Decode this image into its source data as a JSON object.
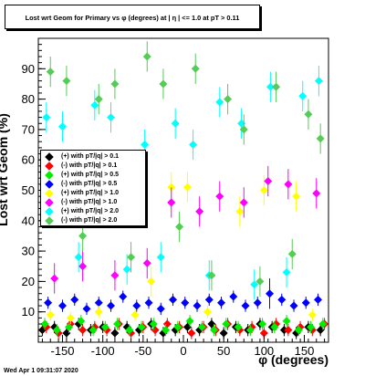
{
  "chart_data": {
    "type": "scatter",
    "title": "Lost wrt Geom for Primary vs φ (degrees) at | η | <= 1.0 at pT > 0.11",
    "xlabel": "φ (degrees)",
    "ylabel": "Lost wrt Geom (%)",
    "xlim": [
      -180,
      180
    ],
    "ylim": [
      0,
      100
    ],
    "xticks": [
      -150,
      -100,
      -50,
      0,
      50,
      100,
      150
    ],
    "yticks": [
      10,
      20,
      30,
      40,
      50,
      60,
      70,
      80,
      90
    ],
    "grid": false,
    "legend_position": "left",
    "series": [
      {
        "name": "(+) with pT/|q| > 0.1",
        "marker": "diamond",
        "color": "#000000",
        "x": [
          -175,
          -160,
          -145,
          -130,
          -115,
          -100,
          -85,
          -70,
          -55,
          -40,
          -25,
          -10,
          5,
          20,
          35,
          50,
          65,
          80,
          95,
          110,
          125,
          140,
          155,
          170
        ],
        "y": [
          4,
          5,
          3,
          6,
          4,
          5,
          3,
          5,
          4,
          6,
          3,
          4,
          5,
          4,
          6,
          3,
          5,
          4,
          6,
          5,
          4,
          3,
          5,
          4
        ]
      },
      {
        "name": "(-) with pT/|q| > 0.1",
        "marker": "diamond",
        "color": "#ff0000",
        "x": [
          -170,
          -155,
          -140,
          -125,
          -110,
          -95,
          -80,
          -65,
          -50,
          -35,
          -20,
          -5,
          10,
          25,
          40,
          55,
          70,
          85,
          100,
          115,
          130,
          145,
          160,
          175
        ],
        "y": [
          5,
          3,
          6,
          4,
          5,
          4,
          6,
          3,
          5,
          4,
          6,
          5,
          3,
          5,
          4,
          6,
          4,
          5,
          3,
          6,
          4,
          5,
          4,
          6
        ]
      },
      {
        "name": "(+) with pT/|q| > 0.5",
        "marker": "diamond",
        "color": "#00ee00",
        "x": [
          -172,
          -157,
          -142,
          -127,
          -112,
          -97,
          -82,
          -67,
          -52,
          -37,
          -22,
          -7,
          8,
          23,
          38,
          53,
          68,
          83,
          98,
          113,
          128,
          143,
          158,
          173
        ],
        "y": [
          6,
          4,
          5,
          7,
          4,
          5,
          6,
          4,
          5,
          6,
          4,
          5,
          7,
          5,
          4,
          6,
          5,
          4,
          6,
          5,
          7,
          4,
          5,
          6
        ]
      },
      {
        "name": "(-) with pT/|q| > 0.5",
        "marker": "diamond",
        "color": "#0000ff",
        "x": [
          -168,
          -150,
          -135,
          -120,
          -105,
          -90,
          -75,
          -58,
          -43,
          -28,
          -13,
          2,
          17,
          32,
          47,
          62,
          77,
          92,
          107,
          122,
          137,
          152,
          167
        ],
        "y": [
          13,
          12,
          14,
          11,
          13,
          12,
          15,
          12,
          13,
          11,
          14,
          13,
          12,
          14,
          13,
          15,
          12,
          13,
          16,
          14,
          12,
          13,
          14
        ]
      },
      {
        "name": "(+) with pT/|q| > 1.0",
        "marker": "diamond",
        "color": "#ffff00",
        "x": [
          -165,
          -140,
          -105,
          -60,
          -40,
          -15,
          5,
          30,
          70,
          100,
          140,
          160
        ],
        "y": [
          9,
          8,
          10,
          9,
          20,
          51,
          51,
          10,
          43,
          50,
          48,
          9
        ]
      },
      {
        "name": "(-) with pT/|q| > 1.0",
        "marker": "diamond",
        "color": "#ff00ff",
        "x": [
          -160,
          -125,
          -85,
          -45,
          -15,
          20,
          45,
          75,
          105,
          130,
          165
        ],
        "y": [
          21,
          25,
          22,
          26,
          46,
          43,
          48,
          46,
          53,
          52,
          49
        ]
      },
      {
        "name": "(+) with pT/|q| > 2.0",
        "marker": "diamond",
        "color": "#00ffff",
        "x": [
          -170,
          -150,
          -130,
          -110,
          -90,
          -70,
          -48,
          -28,
          -10,
          12,
          32,
          45,
          72,
          88,
          108,
          128,
          148,
          168
        ],
        "y": [
          74,
          71,
          28,
          78,
          74,
          24,
          65,
          28,
          72,
          65,
          22,
          79,
          72,
          19,
          84,
          23,
          81,
          86
        ]
      },
      {
        "name": "(-) with pT/|q| > 2.0",
        "marker": "diamond",
        "color": "#55cc55",
        "x": [
          -165,
          -145,
          -125,
          -105,
          -85,
          -65,
          -45,
          -25,
          -5,
          15,
          35,
          55,
          75,
          95,
          115,
          135,
          155,
          170
        ],
        "y": [
          89,
          86,
          35,
          80,
          85,
          28,
          94,
          85,
          38,
          90,
          22,
          80,
          70,
          20,
          84,
          29,
          75,
          67
        ]
      }
    ]
  },
  "footer": {
    "timestamp": "Wed Apr  1 09:31:07 2020"
  }
}
